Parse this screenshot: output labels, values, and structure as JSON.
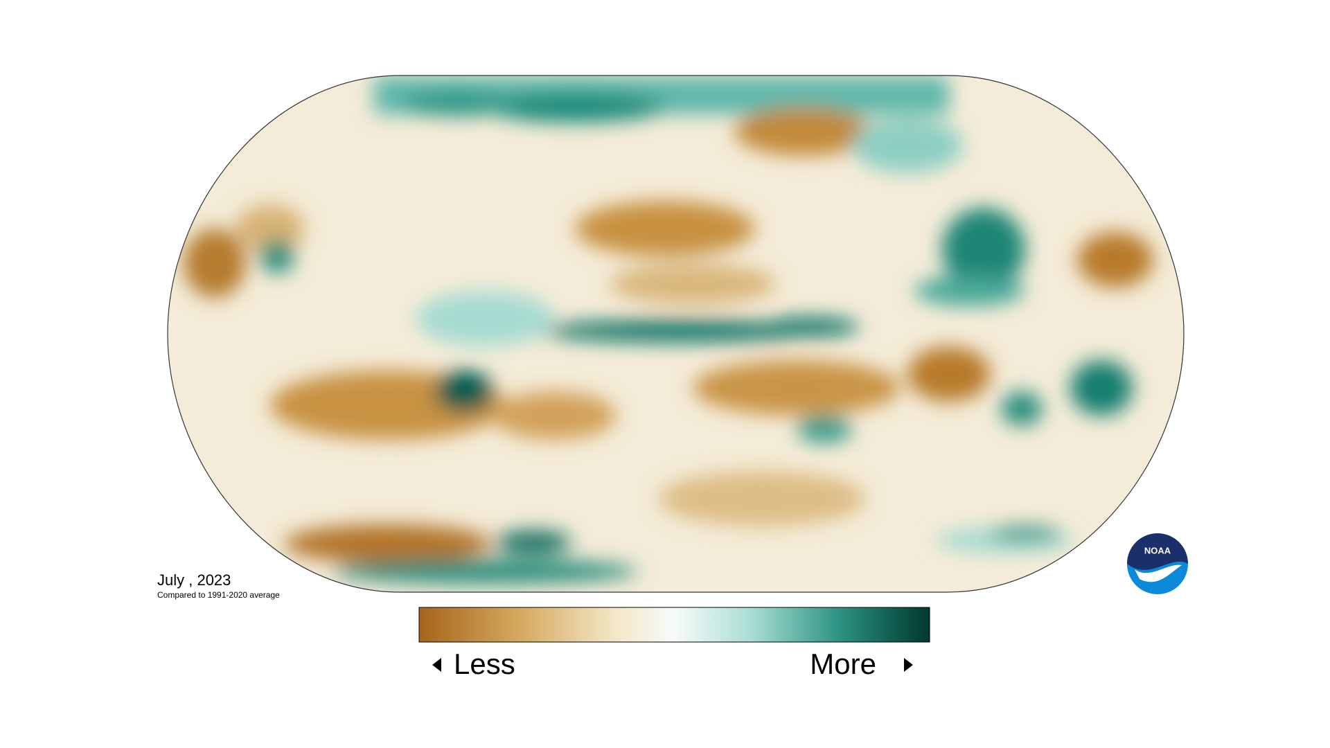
{
  "map": {
    "date": "July , 2023",
    "baseline": "Compared to 1991-2020 average",
    "legend": {
      "low": "Less",
      "high": "More"
    },
    "logo": "NOAA"
  }
}
